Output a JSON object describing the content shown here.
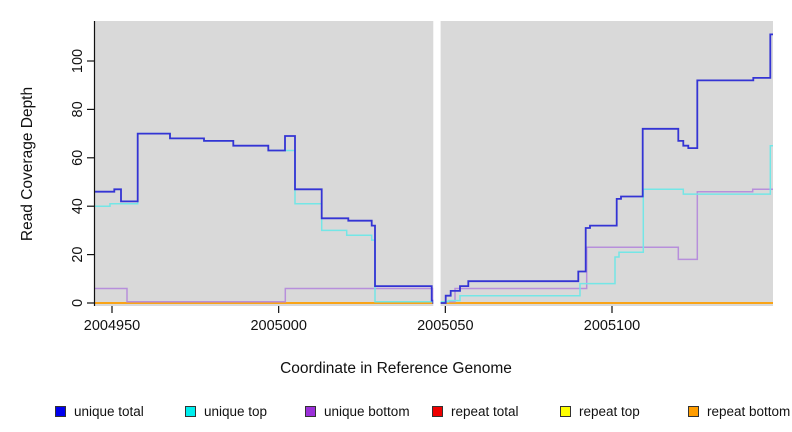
{
  "figure": {
    "x_axis_title": "Coordinate in Reference Genome",
    "y_axis_title": "Read Coverage Depth",
    "background": "#ffffff"
  },
  "chart_data": {
    "type": "line",
    "step": true,
    "title": "",
    "xlabel": "Coordinate in Reference Genome",
    "ylabel": "Read Coverage Depth",
    "panel_bg": "#d9d9d9",
    "grid": "off",
    "legend_position": "bottom",
    "xlim": [
      2004944.9,
      2005148.3
    ],
    "ylim": [
      -1,
      116
    ],
    "x_ticks": [
      2004950,
      2005000,
      2005050,
      2005100
    ],
    "x_tick_labels": [
      "2004950",
      "2005000",
      "2005050",
      "2005100"
    ],
    "y_ticks": [
      0,
      20,
      40,
      60,
      80,
      100
    ],
    "y_tick_labels": [
      "0",
      "20",
      "40",
      "60",
      "80",
      "100"
    ],
    "gap_region_x": [
      2005046.4,
      2005048.6
    ],
    "series": [
      {
        "name": "repeat total",
        "color": "#dd2222",
        "legend_color": "#ee0000",
        "width": 1.4,
        "points": [
          [
            2004944.9,
            0
          ],
          [
            2005148.3,
            0
          ]
        ]
      },
      {
        "name": "repeat top",
        "color": "#f2f20c",
        "legend_color": "#ffff00",
        "width": 1.4,
        "points": [
          [
            2004944.9,
            0
          ],
          [
            2005148.3,
            0
          ]
        ]
      },
      {
        "name": "repeat bottom",
        "color": "#ff9d09",
        "legend_color": "#ff9d00",
        "width": 1.5,
        "points": [
          [
            2004944.9,
            0
          ],
          [
            2005148.3,
            0
          ]
        ]
      },
      {
        "name": "unique bottom",
        "color": "#b78fdb",
        "legend_color": "#9b30d9",
        "width": 1.5,
        "points": [
          [
            2004944.9,
            6
          ],
          [
            2004954.5,
            0.5
          ],
          [
            2005002,
            6
          ],
          [
            2005046.4,
            0.5
          ],
          [
            2005052.9,
            6
          ],
          [
            2005092.4,
            23
          ],
          [
            2005119.9,
            18
          ],
          [
            2005125.6,
            46
          ],
          [
            2005142.2,
            47
          ],
          [
            2005148.3,
            47
          ]
        ]
      },
      {
        "name": "unique top",
        "color": "#74e6e6",
        "legend_color": "#00eeee",
        "width": 1.5,
        "points": [
          [
            2004944.9,
            40
          ],
          [
            2004949.4,
            41
          ],
          [
            2004957.7,
            70
          ],
          [
            2004967.4,
            68
          ],
          [
            2004977.6,
            67
          ],
          [
            2004986.4,
            65
          ],
          [
            2004996.9,
            63
          ],
          [
            2005004.9,
            41
          ],
          [
            2005012.9,
            30
          ],
          [
            2005020.4,
            28
          ],
          [
            2005027.9,
            26
          ],
          [
            2005028.9,
            0.5
          ],
          [
            2005050.9,
            1
          ],
          [
            2005054.4,
            3
          ],
          [
            2005090.4,
            8
          ],
          [
            2005100.9,
            19
          ],
          [
            2005102.1,
            21
          ],
          [
            2005109.4,
            47
          ],
          [
            2005121.4,
            45
          ],
          [
            2005147.5,
            65
          ],
          [
            2005148.3,
            65
          ]
        ]
      },
      {
        "name": "unique total",
        "color": "#3434d4",
        "legend_color": "#0000ee",
        "width": 1.8,
        "points": [
          [
            2004944.9,
            46
          ],
          [
            2004950.7,
            47
          ],
          [
            2004952.7,
            42
          ],
          [
            2004957.7,
            70
          ],
          [
            2004967.4,
            68
          ],
          [
            2004977.6,
            67
          ],
          [
            2004986.4,
            65
          ],
          [
            2004996.9,
            63
          ],
          [
            2005001.9,
            69
          ],
          [
            2005004.9,
            47
          ],
          [
            2005012.9,
            35
          ],
          [
            2005020.9,
            34
          ],
          [
            2005027.9,
            32
          ],
          [
            2005028.9,
            7
          ],
          [
            2005045.9,
            1
          ],
          [
            2005046.4,
            0
          ],
          [
            2005050.1,
            3
          ],
          [
            2005051.6,
            5
          ],
          [
            2005054.4,
            7
          ],
          [
            2005056.9,
            9
          ],
          [
            2005089.9,
            13
          ],
          [
            2005092.1,
            31
          ],
          [
            2005093.4,
            32
          ],
          [
            2005101.4,
            43
          ],
          [
            2005102.7,
            44
          ],
          [
            2005109.2,
            72
          ],
          [
            2005119.9,
            67
          ],
          [
            2005121.4,
            65
          ],
          [
            2005122.9,
            64
          ],
          [
            2005125.6,
            92
          ],
          [
            2005142.4,
            93
          ],
          [
            2005147.5,
            111
          ],
          [
            2005148.3,
            111
          ]
        ]
      }
    ]
  },
  "legend": {
    "items": [
      {
        "label": "unique total",
        "color": "#0000ee"
      },
      {
        "label": "unique top",
        "color": "#00eeee"
      },
      {
        "label": "unique bottom",
        "color": "#9b30d9"
      },
      {
        "label": "repeat total",
        "color": "#ee0000"
      },
      {
        "label": "repeat top",
        "color": "#ffff00"
      },
      {
        "label": "repeat bottom",
        "color": "#ff9d00"
      }
    ]
  }
}
